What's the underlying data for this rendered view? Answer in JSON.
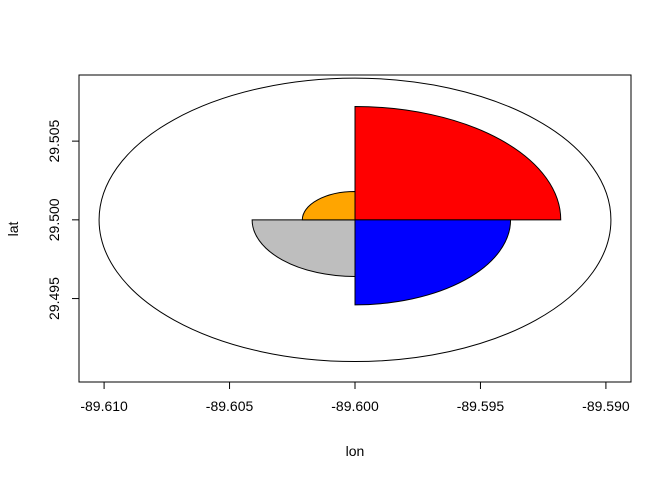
{
  "chart_data": {
    "type": "other",
    "subtype": "wind-rose sectors on lon/lat plot",
    "xlabel": "lon",
    "ylabel": "lat",
    "xlim": [
      -89.611,
      -89.589
    ],
    "ylim": [
      29.4897,
      29.5092
    ],
    "x_ticks": [
      -89.61,
      -89.605,
      -89.6,
      -89.595,
      -89.59
    ],
    "x_tick_labels": [
      "-89.610",
      "-89.605",
      "-89.600",
      "-89.595",
      "-89.590"
    ],
    "y_ticks": [
      29.495,
      29.5,
      29.505
    ],
    "y_tick_labels": [
      "29.495",
      "29.500",
      "29.505"
    ],
    "center": {
      "lon": -89.6,
      "lat": 29.5
    },
    "outer_ellipse": {
      "rx_lon": 0.0102,
      "ry_lat": 0.009
    },
    "sectors": [
      {
        "quadrant": "NE",
        "color": "#ff0000",
        "rx_lon": 0.0082,
        "ry_lat": 0.0072
      },
      {
        "quadrant": "SE",
        "color": "#0000ff",
        "rx_lon": 0.0062,
        "ry_lat": 0.0054
      },
      {
        "quadrant": "SW",
        "color": "#bebebe",
        "rx_lon": 0.0041,
        "ry_lat": 0.0036
      },
      {
        "quadrant": "NW",
        "color": "#ffa500",
        "rx_lon": 0.0021,
        "ry_lat": 0.0018
      }
    ]
  }
}
